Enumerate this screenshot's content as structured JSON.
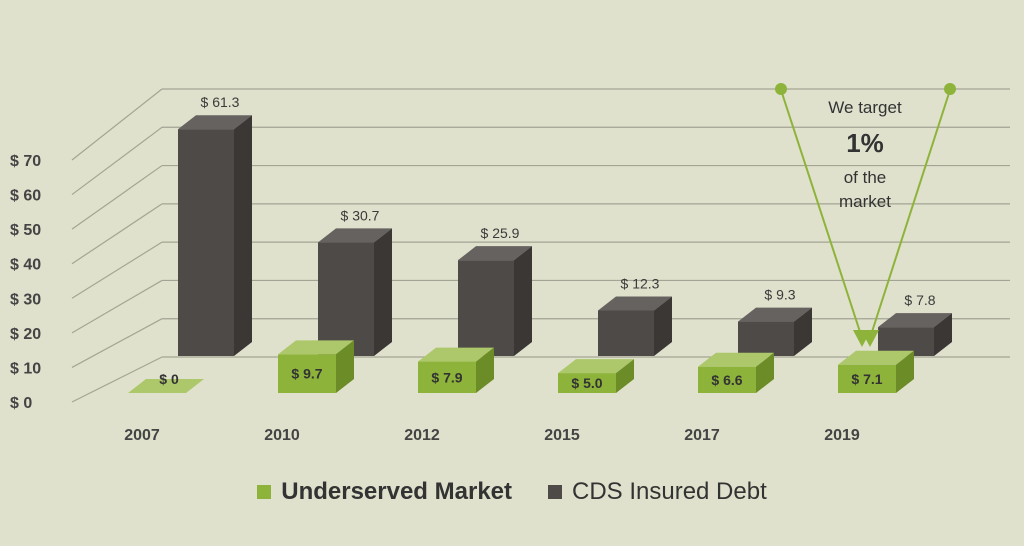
{
  "chart_data": {
    "type": "bar",
    "categories": [
      "2007",
      "2010",
      "2012",
      "2015",
      "2017",
      "2019"
    ],
    "series": [
      {
        "name": "Underserved Market",
        "values": [
          0,
          9.7,
          7.9,
          5.0,
          6.6,
          7.1
        ],
        "labels": [
          "$ 0",
          "$ 9.7",
          "$ 7.9",
          "$ 5.0",
          "$ 6.6",
          "$ 7.1"
        ],
        "color": "#8db33a"
      },
      {
        "name": "CDS Insured Debt",
        "values": [
          61.3,
          30.7,
          25.9,
          12.3,
          9.3,
          7.8
        ],
        "labels": [
          "$ 61.3",
          "$ 30.7",
          "$ 25.9",
          "$ 12.3",
          "$ 9.3",
          "$ 7.8"
        ],
        "color": "#4e4a48"
      }
    ],
    "y_ticks": [
      "$ 0",
      "$ 10",
      "$ 20",
      "$ 30",
      "$ 40",
      "$ 50",
      "$ 60",
      "$ 70"
    ],
    "ylim": [
      0,
      70
    ],
    "grid": true,
    "legend_position": "bottom",
    "annotation": {
      "line1": "We target",
      "line2": "1%",
      "line3": "of the",
      "line4": "market"
    }
  }
}
